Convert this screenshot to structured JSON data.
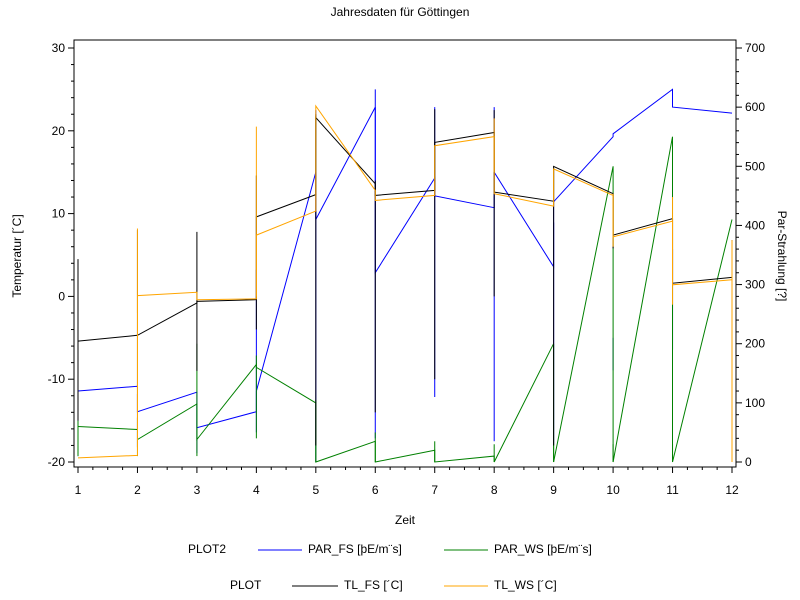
{
  "chart_data": {
    "type": "line",
    "title": "Jahresdaten für Göttingen",
    "xlabel": "Zeit",
    "ylabel_left": "Temperatur [´C]",
    "ylabel_right": "Par-Strahlung [?]",
    "xlim": [
      1,
      12
    ],
    "ylim_left": [
      -20,
      30
    ],
    "ylim_right": [
      0,
      700
    ],
    "x_ticks": [
      "1",
      "2",
      "3",
      "4",
      "5",
      "6",
      "7",
      "8",
      "9",
      "10",
      "11",
      "12"
    ],
    "y_ticks_left": [
      "30",
      "20",
      "10",
      "0",
      "-10",
      "-20"
    ],
    "y_ticks_right": [
      "700",
      "600",
      "500",
      "400",
      "300",
      "200",
      "100",
      "0"
    ],
    "legend_groups": [
      {
        "label": "PLOT2",
        "entries": [
          "PAR_FS",
          "PAR_WS"
        ]
      },
      {
        "label": "PLOT",
        "entries": [
          "TL_FS",
          "TL_WS"
        ]
      }
    ],
    "series": [
      {
        "name": "PAR_FS [þE/m¨s]",
        "color": "#0000ff",
        "axis": "right",
        "points": [
          [
            1.0,
            120
          ],
          [
            2.0,
            128
          ],
          [
            2.0,
            85
          ],
          [
            3.0,
            118
          ],
          [
            3.0,
            58
          ],
          [
            4.0,
            85
          ],
          [
            4.0,
            120
          ],
          [
            5.0,
            490
          ],
          [
            5.0,
            410
          ],
          [
            6.0,
            600
          ],
          [
            6.0,
            320
          ],
          [
            7.0,
            480
          ],
          [
            7.0,
            450
          ],
          [
            8.0,
            430
          ],
          [
            8.0,
            490
          ],
          [
            9.0,
            330
          ],
          [
            9.0,
            440
          ],
          [
            10.0,
            550
          ],
          [
            10.0,
            555
          ],
          [
            11.0,
            630
          ],
          [
            11.0,
            600
          ],
          [
            12.0,
            590
          ]
        ],
        "drops": [
          [
            1,
            10,
            300
          ],
          [
            2,
            25,
            115
          ],
          [
            3,
            15,
            100
          ],
          [
            4,
            50,
            325
          ],
          [
            5,
            0,
            595
          ],
          [
            6,
            40,
            630
          ],
          [
            7,
            110,
            600
          ],
          [
            8,
            35,
            600
          ],
          [
            9,
            30,
            405
          ],
          [
            10,
            155,
            210
          ],
          [
            11,
            190,
            360
          ],
          [
            12,
            180,
            120
          ]
        ]
      },
      {
        "name": "PAR_WS [þE/m¨s]",
        "color": "#008000",
        "axis": "right",
        "points": [
          [
            1.0,
            60
          ],
          [
            2.0,
            55
          ],
          [
            2.0,
            38
          ],
          [
            3.0,
            98
          ],
          [
            3.0,
            38
          ],
          [
            4.0,
            165
          ],
          [
            4.0,
            160
          ],
          [
            5.0,
            100
          ],
          [
            5.0,
            0
          ],
          [
            6.0,
            35
          ],
          [
            6.0,
            0
          ],
          [
            7.0,
            20
          ],
          [
            7.0,
            0
          ],
          [
            8.0,
            10
          ],
          [
            8.0,
            0
          ],
          [
            9.0,
            200
          ],
          [
            9.0,
            0
          ],
          [
            10.0,
            500
          ],
          [
            10.0,
            0
          ],
          [
            11.0,
            550
          ],
          [
            11.0,
            0
          ],
          [
            12.0,
            410
          ]
        ],
        "drops": [
          [
            1,
            10,
            70
          ],
          [
            2,
            10,
            75
          ],
          [
            3,
            10,
            200
          ],
          [
            4,
            40,
            180
          ],
          [
            5,
            0,
            105
          ],
          [
            6,
            0,
            50
          ],
          [
            7,
            0,
            35
          ],
          [
            8,
            0,
            30
          ],
          [
            9,
            0,
            30
          ],
          [
            10,
            0,
            30
          ],
          [
            11,
            0,
            30
          ],
          [
            12,
            0,
            60
          ]
        ]
      },
      {
        "name": "TL_FS [´C]",
        "color": "#000000",
        "axis": "left",
        "points": [
          [
            1.0,
            -5.4
          ],
          [
            2.0,
            -4.7
          ],
          [
            3.0,
            -0.8
          ],
          [
            3.0,
            -0.6
          ],
          [
            4.0,
            -0.4
          ],
          [
            4.0,
            9.6
          ],
          [
            5.0,
            12.3
          ],
          [
            5.0,
            21.6
          ],
          [
            6.0,
            13.6
          ],
          [
            6.0,
            12.2
          ],
          [
            7.0,
            12.8
          ],
          [
            7.0,
            18.6
          ],
          [
            8.0,
            19.8
          ],
          [
            8.0,
            12.6
          ],
          [
            9.0,
            11.5
          ],
          [
            9.0,
            15.7
          ],
          [
            10.0,
            12.4
          ],
          [
            10.0,
            7.4
          ],
          [
            11.0,
            9.4
          ],
          [
            11.0,
            1.6
          ],
          [
            12.0,
            2.3
          ]
        ],
        "drops": [
          [
            1,
            -15,
            4.5
          ],
          [
            2,
            -14,
            8
          ],
          [
            3,
            -9,
            7.8
          ],
          [
            4,
            -4,
            14.6
          ],
          [
            5,
            -18,
            22
          ],
          [
            6,
            -14,
            14
          ],
          [
            7,
            -10,
            22.6
          ],
          [
            8,
            0,
            22.5
          ],
          [
            9,
            -18,
            15.5
          ],
          [
            10,
            5.8,
            12.4
          ],
          [
            11,
            1.6,
            9.4
          ],
          [
            12,
            -1.6,
            6.8
          ]
        ]
      },
      {
        "name": "TL_WS [´C]",
        "color": "#ffa500",
        "axis": "left",
        "points": [
          [
            1.0,
            -19.5
          ],
          [
            2.0,
            -19.2
          ],
          [
            2.0,
            0.1
          ],
          [
            3.0,
            0.5
          ],
          [
            3.0,
            -0.4
          ],
          [
            4.0,
            -0.3
          ],
          [
            4.0,
            7.4
          ],
          [
            5.0,
            10.3
          ],
          [
            5.0,
            23.0
          ],
          [
            6.0,
            12.8
          ],
          [
            6.0,
            11.6
          ],
          [
            7.0,
            12.2
          ],
          [
            7.0,
            18.2
          ],
          [
            8.0,
            19.3
          ],
          [
            8.0,
            12.4
          ],
          [
            9.0,
            10.9
          ],
          [
            9.0,
            15.4
          ],
          [
            10.0,
            12.2
          ],
          [
            10.0,
            7.2
          ],
          [
            11.0,
            9.1
          ],
          [
            11.0,
            1.4
          ],
          [
            12.0,
            2.0
          ]
        ],
        "drops": [
          [
            2,
            -2,
            8.2
          ],
          [
            4,
            0,
            20.5
          ],
          [
            8,
            15,
            21.5
          ],
          [
            10,
            6,
            12.4
          ],
          [
            11,
            -1,
            12.0
          ],
          [
            12,
            -20,
            6.8
          ]
        ]
      }
    ],
    "grid": false,
    "legend_position": "bottom"
  }
}
